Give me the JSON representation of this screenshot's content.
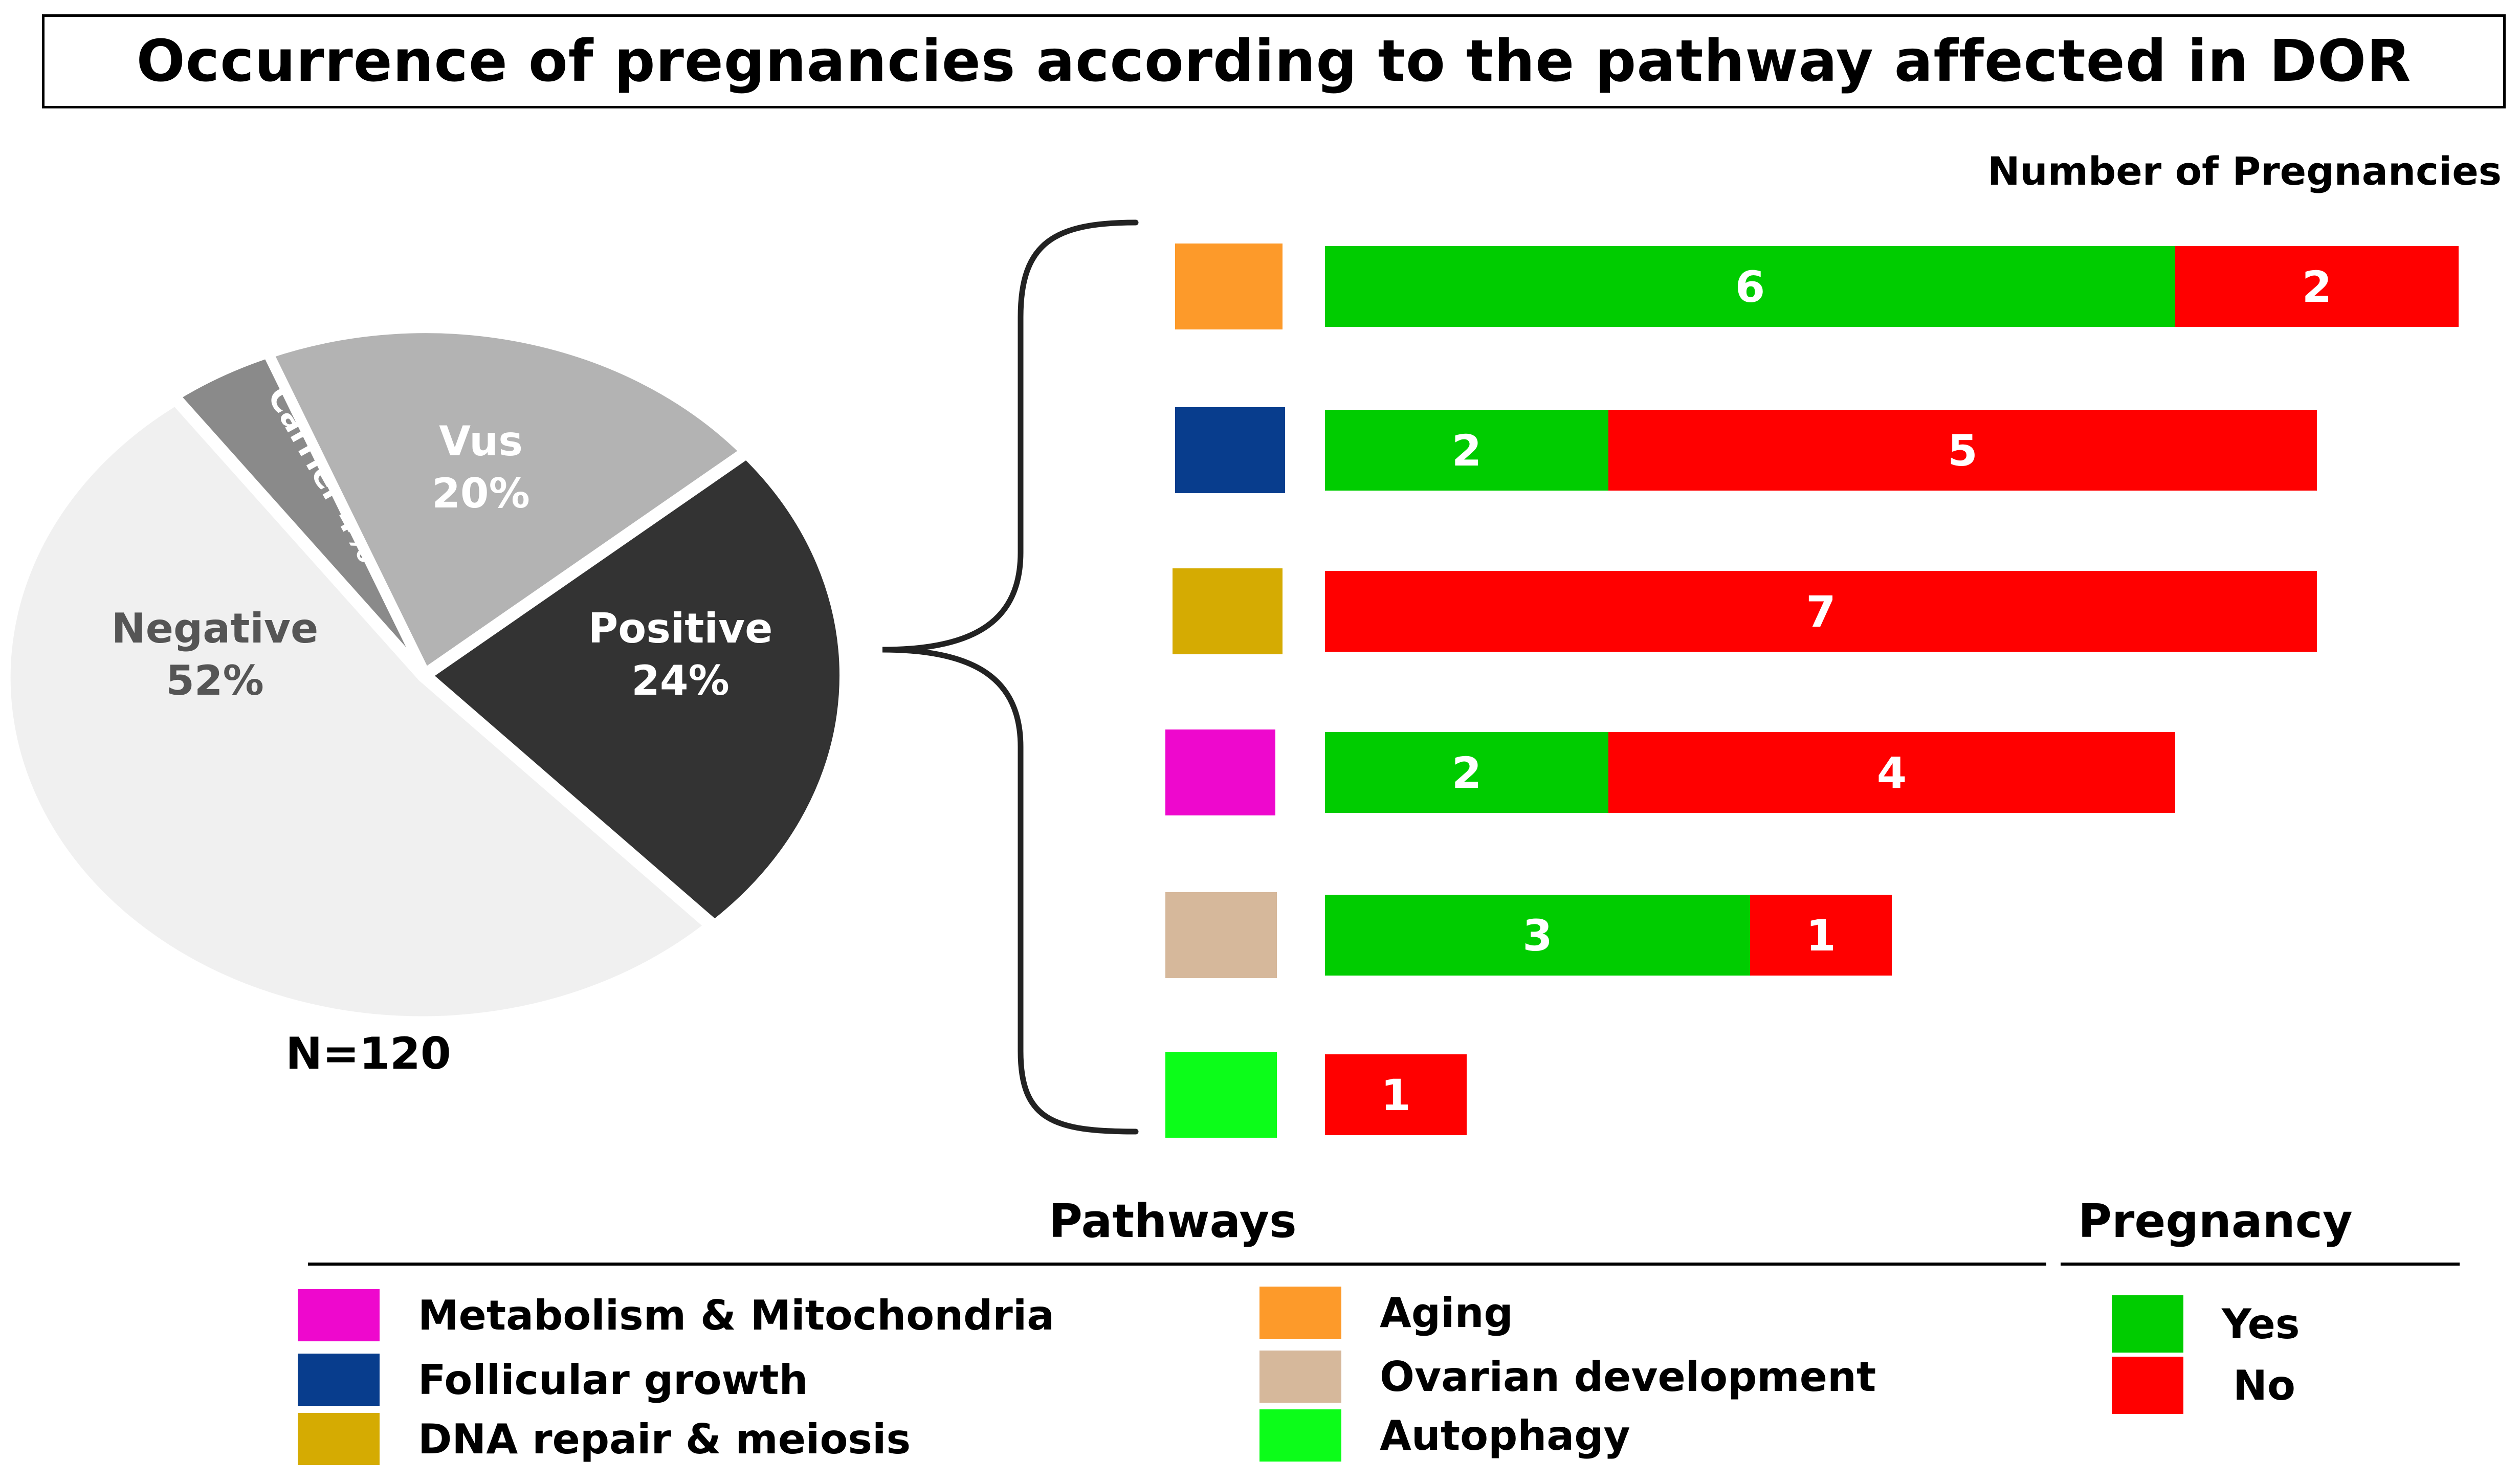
{
  "title": "Occurrence of pregnancies according to the pathway affected in DOR",
  "chart_data": [
    {
      "type": "pie",
      "title": "",
      "n_label": "N=120",
      "slices": [
        {
          "label": "Positive",
          "value": 24,
          "display": "24%",
          "color": "#333333",
          "text_color": "#ffffff"
        },
        {
          "label": "Negative",
          "value": 52,
          "display": "52%",
          "color": "#f0f0f0",
          "text_color": "#555555"
        },
        {
          "label": "Carrier",
          "value": 4,
          "display": "4%",
          "color": "#8a8a8a",
          "text_color": "#ffffff"
        },
        {
          "label": "Vus",
          "value": 20,
          "display": "20%",
          "color": "#b3b3b3",
          "text_color": "#ffffff"
        }
      ]
    },
    {
      "type": "bar",
      "orientation": "horizontal",
      "stacked": true,
      "title": "Number of Pregnancies",
      "xlabel": "Number of Pregnancies",
      "ylabel": "",
      "xlim": [
        0,
        8
      ],
      "categories": [
        "Aging",
        "Follicular growth",
        "DNA repair & meiosis",
        "Metabolism & Mitochondria",
        "Ovarian development",
        "Autophagy"
      ],
      "category_colors": [
        "#fd9a2a",
        "#083d8d",
        "#d5ab02",
        "#ee08cd",
        "#d6b89b",
        "#0cfd19"
      ],
      "series": [
        {
          "name": "Yes",
          "color": "#00cc00",
          "values": [
            6,
            2,
            0,
            2,
            3,
            0
          ]
        },
        {
          "name": "No",
          "color": "#ff0000",
          "values": [
            2,
            5,
            7,
            4,
            1,
            1
          ]
        }
      ]
    }
  ],
  "legend": {
    "pathways_title": "Pathways",
    "pregnancy_title": "Pregnancy",
    "pathways": [
      {
        "label": "Metabolism & Mitochondria",
        "color": "#ee08cd"
      },
      {
        "label": "Follicular growth",
        "color": "#083d8d"
      },
      {
        "label": "DNA repair & meiosis",
        "color": "#d5ab02"
      },
      {
        "label": "Aging",
        "color": "#fd9a2a"
      },
      {
        "label": "Ovarian development",
        "color": "#d6b89b"
      },
      {
        "label": "Autophagy",
        "color": "#0cfd19"
      }
    ],
    "pregnancy": [
      {
        "label": "Yes",
        "color": "#00cc00"
      },
      {
        "label": "No",
        "color": "#ff0000"
      }
    ]
  }
}
